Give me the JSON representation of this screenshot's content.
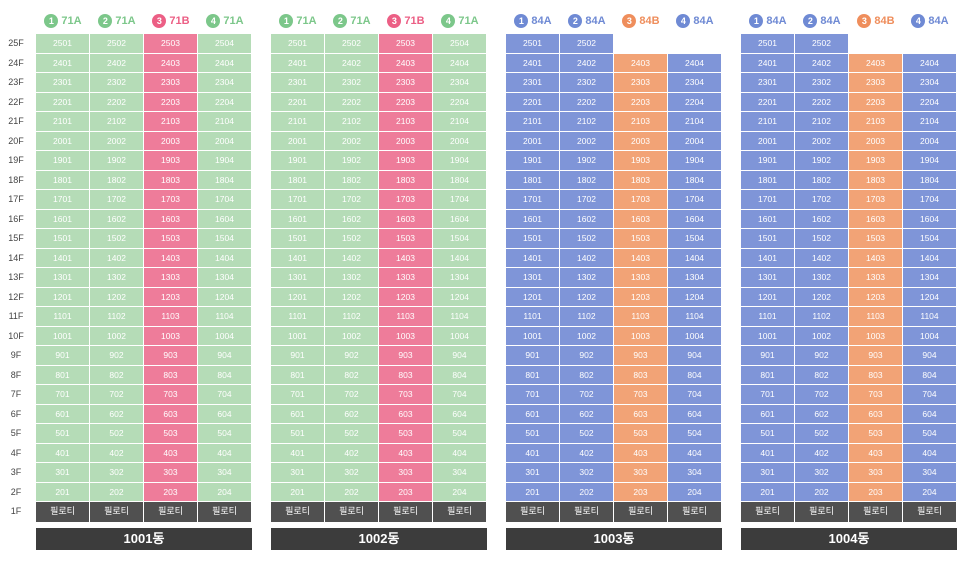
{
  "floors": [
    "25F",
    "24F",
    "23F",
    "22F",
    "21F",
    "20F",
    "19F",
    "18F",
    "17F",
    "16F",
    "15F",
    "14F",
    "13F",
    "12F",
    "11F",
    "10F",
    "9F",
    "8F",
    "7F",
    "6F",
    "5F",
    "4F",
    "3F",
    "2F",
    "1F"
  ],
  "pilotis_label": "필로티",
  "colors": {
    "71A": "#b5dcb7",
    "71A_header": "#7cc78a",
    "71B": "#ee7c9a",
    "71B_header": "#ec5f85",
    "84A": "#7f95d8",
    "84A_header": "#6f8ad4",
    "84B": "#f2a376",
    "84B_header": "#ef8e5c",
    "pilotis": "#505050",
    "bar": "#3c3c3c"
  },
  "buildings": [
    {
      "name": "1001동",
      "lines": [
        {
          "num": "1",
          "type": "71A"
        },
        {
          "num": "2",
          "type": "71A"
        },
        {
          "num": "3",
          "type": "71B"
        },
        {
          "num": "4",
          "type": "71A"
        }
      ],
      "top_floor": [
        25,
        25,
        25,
        25
      ]
    },
    {
      "name": "1002동",
      "lines": [
        {
          "num": "1",
          "type": "71A"
        },
        {
          "num": "2",
          "type": "71A"
        },
        {
          "num": "3",
          "type": "71B"
        },
        {
          "num": "4",
          "type": "71A"
        }
      ],
      "top_floor": [
        25,
        25,
        25,
        25
      ]
    },
    {
      "name": "1003동",
      "lines": [
        {
          "num": "1",
          "type": "84A"
        },
        {
          "num": "2",
          "type": "84A"
        },
        {
          "num": "3",
          "type": "84B"
        },
        {
          "num": "4",
          "type": "84A"
        }
      ],
      "top_floor": [
        25,
        25,
        24,
        24
      ]
    },
    {
      "name": "1004동",
      "lines": [
        {
          "num": "1",
          "type": "84A"
        },
        {
          "num": "2",
          "type": "84A"
        },
        {
          "num": "3",
          "type": "84B"
        },
        {
          "num": "4",
          "type": "84A"
        }
      ],
      "top_floor": [
        25,
        25,
        24,
        24
      ]
    }
  ]
}
